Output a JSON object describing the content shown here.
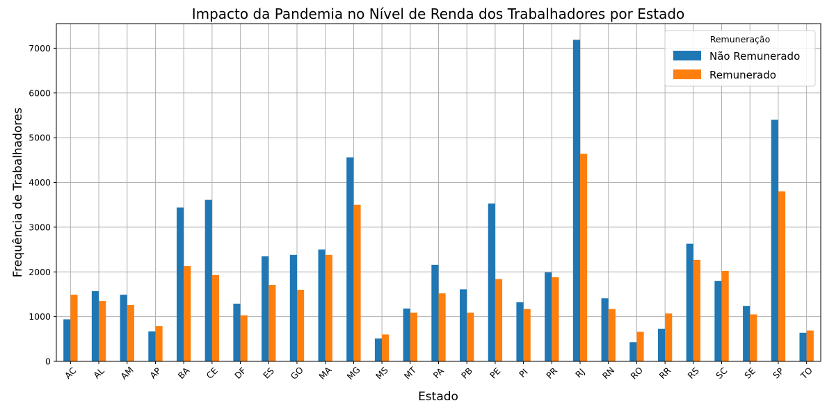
{
  "chart_data": {
    "type": "bar",
    "title": "Impacto da Pandemia no Nível de Renda dos Trabalhadores por Estado",
    "xlabel": "Estado",
    "ylabel": "Frequência de Trabalhadores",
    "ylim": [
      0,
      7550
    ],
    "yticks": [
      0,
      1000,
      2000,
      3000,
      4000,
      5000,
      6000,
      7000
    ],
    "grid": true,
    "legend_title": "Remuneração",
    "legend_position": "top-right",
    "categories": [
      "AC",
      "AL",
      "AM",
      "AP",
      "BA",
      "CE",
      "DF",
      "ES",
      "GO",
      "MA",
      "MG",
      "MS",
      "MT",
      "PA",
      "PB",
      "PE",
      "PI",
      "PR",
      "RJ",
      "RN",
      "RO",
      "RR",
      "RS",
      "SC",
      "SE",
      "SP",
      "TO"
    ],
    "series": [
      {
        "name": "Não Remunerado",
        "color": "#1f77b4",
        "values": [
          940,
          1570,
          1490,
          670,
          3440,
          3610,
          1290,
          2350,
          2380,
          2500,
          4560,
          510,
          1180,
          2160,
          1610,
          3530,
          1320,
          1990,
          7190,
          1410,
          430,
          730,
          2630,
          1800,
          1240,
          5400,
          640
        ]
      },
      {
        "name": "Remunerado",
        "color": "#ff7f0e",
        "values": [
          1490,
          1350,
          1260,
          790,
          2130,
          1930,
          1030,
          1710,
          1600,
          2380,
          3500,
          600,
          1090,
          1520,
          1090,
          1840,
          1170,
          1880,
          4640,
          1170,
          660,
          1070,
          2270,
          2020,
          1050,
          3800,
          690
        ]
      }
    ]
  }
}
